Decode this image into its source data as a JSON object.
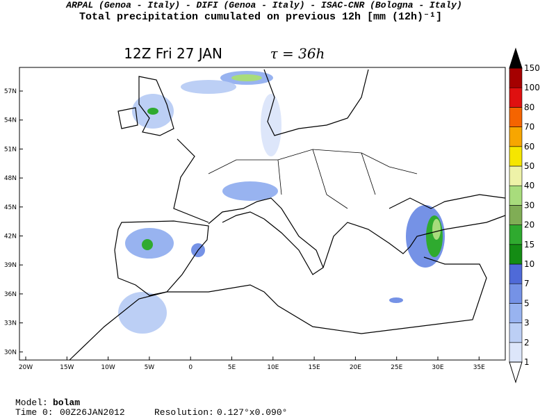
{
  "header": {
    "credits": "ARPAL (Genoa - Italy)  -  DIFI (Genoa - Italy)  -  ISAC-CNR (Bologna - Italy)",
    "title": "Total precipitation cumulated on previous 12h [mm (12h)⁻¹]"
  },
  "map": {
    "title": "12Z Fri 27 JAN",
    "tau": "τ = 36h",
    "lat_labels": [
      "57N",
      "54N",
      "51N",
      "48N",
      "45N",
      "42N",
      "39N",
      "36N",
      "33N",
      "30N"
    ],
    "lon_labels": [
      "20W",
      "15W",
      "10W",
      "5W",
      "0",
      "5E",
      "10E",
      "15E",
      "20E",
      "25E",
      "30E",
      "35E"
    ]
  },
  "legend": {
    "levels": [
      "1",
      "2",
      "3",
      "5",
      "7",
      "10",
      "15",
      "20",
      "30",
      "40",
      "50",
      "60",
      "70",
      "80",
      "100",
      "150"
    ],
    "colors": [
      "#dde6fa",
      "#bccff5",
      "#98b3f0",
      "#7592e6",
      "#4f6ad8",
      "#148c14",
      "#2faa2f",
      "#80ad55",
      "#a8dc7c",
      "#eef2a8",
      "#f6e600",
      "#f7a600",
      "#f56400",
      "#df1010",
      "#a50000"
    ],
    "top_color": "#000000",
    "bottom_color": "#ffffff"
  },
  "footer": {
    "model_label": "Model:",
    "model": "bolam",
    "time_label": "Time 0:",
    "time": "00Z26JAN2012",
    "resolution_label": "Resolution:",
    "resolution": "0.127°x0.090°"
  }
}
